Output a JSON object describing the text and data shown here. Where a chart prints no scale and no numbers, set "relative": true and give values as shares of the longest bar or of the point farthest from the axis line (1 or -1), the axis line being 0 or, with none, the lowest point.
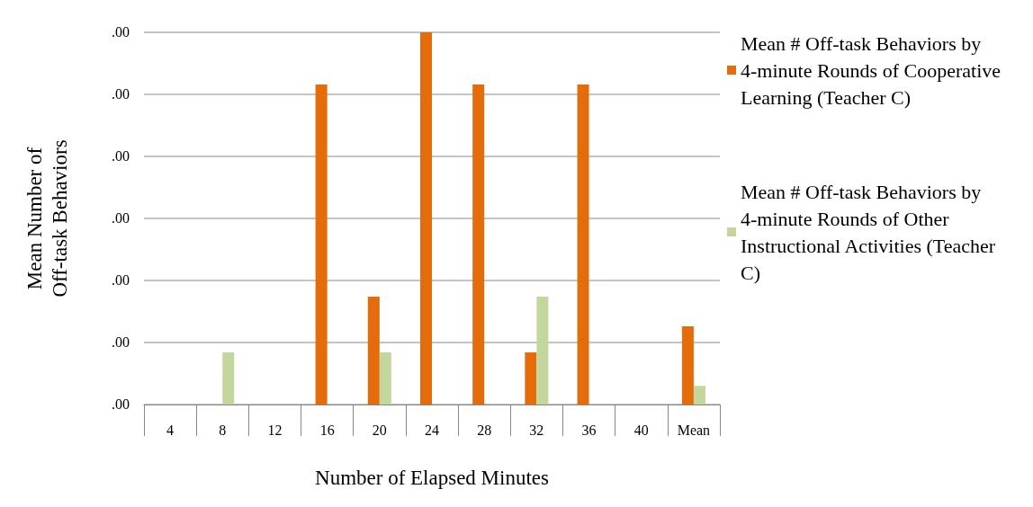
{
  "chart_data": {
    "type": "bar",
    "xlabel": "Number of Elapsed Minutes",
    "ylabel": "Mean Number of\nOff-task Behaviors",
    "categories": [
      "4",
      "8",
      "12",
      "16",
      "20",
      "24",
      "28",
      "32",
      "36",
      "40",
      "Mean"
    ],
    "series": [
      {
        "name": "Mean # Off-task Behaviors by 4-minute Rounds of Cooperative Learning (Teacher C)",
        "color": "#e46c0a",
        "values": [
          0,
          0,
          0,
          0.86,
          0.29,
          1,
          0.86,
          0.14,
          0.86,
          0,
          0.21
        ]
      },
      {
        "name": "Mean # Off-task Behaviors by 4-minute Rounds of Other Instructional Activities (Teacher C)",
        "color": "#c3d69b",
        "values": [
          0,
          0.14,
          0,
          0,
          0.14,
          0,
          0,
          0.29,
          0,
          0,
          0.05
        ]
      }
    ],
    "relative": true,
    "annotations": [
      ".00",
      ".00",
      ".00",
      ".00",
      ".00",
      ".00",
      ".00"
    ],
    "grid": "y",
    "legend": "right"
  }
}
